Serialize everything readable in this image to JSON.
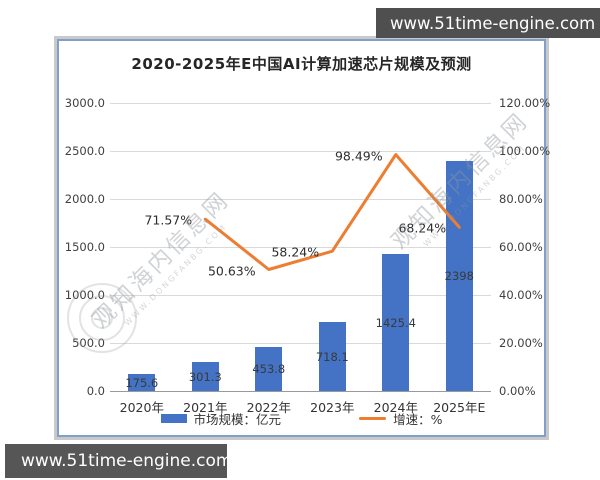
{
  "banners": {
    "top_right": "www.51time-engine.com",
    "bottom_left": "www.51time-engine.com"
  },
  "watermark": {
    "text": "观知海内信息网",
    "subtext": "WWW.DONGFANBG.COM"
  },
  "colors": {
    "bar": "#4472C4",
    "line": "#ED7D31",
    "frame_border": "#7fa0ca",
    "banner_bg": "#4f4f4f",
    "grid": "#d9d9d9"
  },
  "chart_data": {
    "type": "bar",
    "subtype": "bar-line-combo",
    "title": "2020-2025年E中国AI计算加速芯片规模及预测",
    "categories": [
      "2020年",
      "2021年",
      "2022年",
      "2023年",
      "2024年",
      "2025年E"
    ],
    "series": [
      {
        "name": "市场规模：亿元",
        "type": "bar",
        "axis": "left",
        "color": "#4472C4",
        "values": [
          175.6,
          301.3,
          453.8,
          718.1,
          1425.4,
          2398
        ],
        "labels": [
          "175.6",
          "301.3",
          "453.8",
          "718.1",
          "1425.4",
          "2398"
        ]
      },
      {
        "name": "增速：%",
        "type": "line",
        "axis": "right",
        "color": "#ED7D31",
        "values": [
          null,
          71.57,
          50.63,
          58.24,
          98.49,
          68.24
        ],
        "labels": [
          null,
          "71.57%",
          "50.63%",
          "58.24%",
          "98.49%",
          "68.24%"
        ]
      }
    ],
    "left_axis": {
      "min": 0,
      "max": 3000,
      "ticks": [
        "3000.0",
        "2500.0",
        "2000.0",
        "1500.0",
        "1000.0",
        "500.0",
        "0.0"
      ]
    },
    "right_axis": {
      "min": 0,
      "max": 120,
      "ticks": [
        "120.00%",
        "100.00%",
        "80.00%",
        "60.00%",
        "40.00%",
        "20.00%",
        "0.00%"
      ]
    },
    "grid": true,
    "legend_position": "bottom"
  }
}
